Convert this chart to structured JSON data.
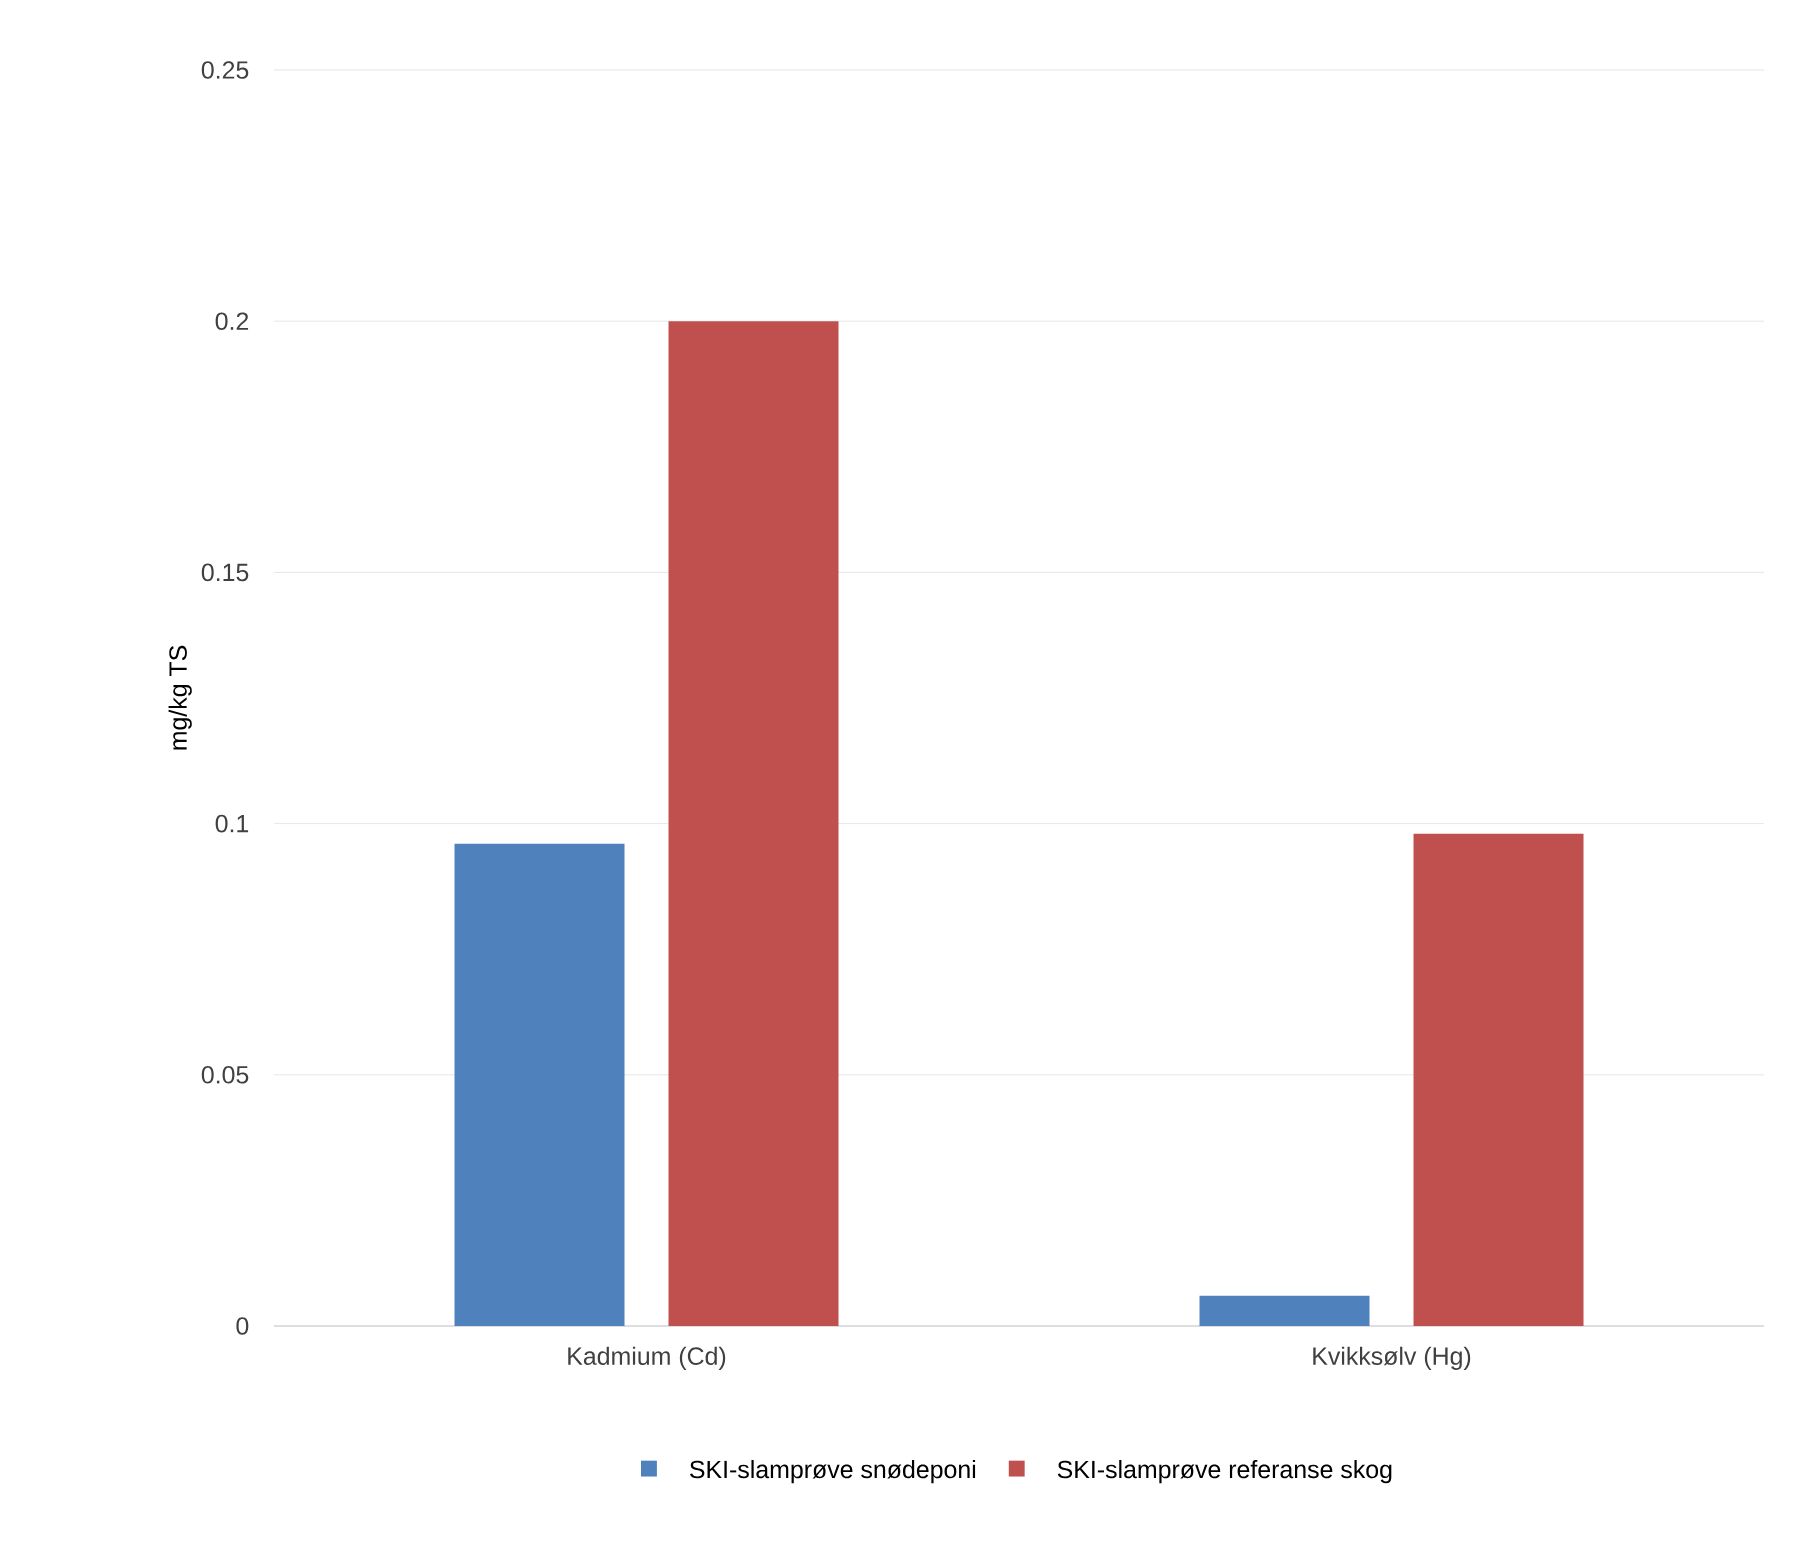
{
  "chart_data": {
    "type": "bar",
    "ylabel": "mg/kg TS",
    "categories": [
      "Kadmium (Cd)",
      "Kvikksølv (Hg)"
    ],
    "series": [
      {
        "name": "SKI-slamprøve snødeponi",
        "color": "#4f81bd",
        "values": [
          0.096,
          0.006
        ]
      },
      {
        "name": "SKI-slamprøve referanse skog",
        "color": "#c0504d",
        "values": [
          0.2,
          0.098
        ]
      }
    ],
    "ylim": [
      0,
      0.25
    ],
    "yticks": [
      0,
      0.05,
      0.1,
      0.15,
      0.2,
      0.25
    ],
    "grid": "y",
    "legend": "bottom"
  }
}
